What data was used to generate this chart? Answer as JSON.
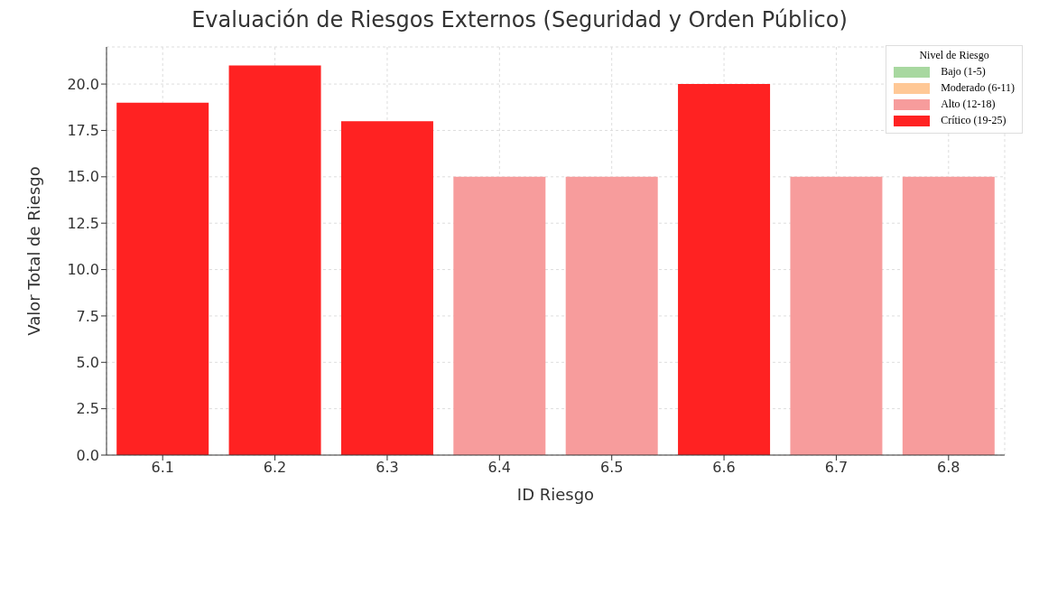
{
  "chart_data": {
    "type": "bar",
    "title": "Evaluación de Riesgos Externos (Seguridad y Orden Público)",
    "xlabel": "ID Riesgo",
    "ylabel": "Valor Total de Riesgo",
    "legend_title": "Nivel de Riesgo",
    "categories": [
      "6.1",
      "6.2",
      "6.3",
      "6.4",
      "6.5",
      "6.6",
      "6.7",
      "6.8"
    ],
    "series": [
      {
        "name": "Bajo (1-5)",
        "color": "#a8d8a0",
        "values": [
          null,
          null,
          null,
          null,
          null,
          null,
          null,
          null
        ]
      },
      {
        "name": "Moderado (6-11)",
        "color": "#ffc896",
        "values": [
          null,
          null,
          null,
          null,
          null,
          null,
          null,
          null
        ]
      },
      {
        "name": "Alto (12-18)",
        "color": "#f79c9c",
        "values": [
          null,
          null,
          null,
          15,
          15,
          null,
          15,
          15
        ]
      },
      {
        "name": "Crítico (19-25)",
        "color": "#ff2222",
        "values": [
          19,
          21,
          18,
          null,
          null,
          20,
          null,
          null
        ]
      }
    ],
    "stacked": true,
    "ylim": [
      0,
      22
    ],
    "yticks": [
      {
        "value": 0,
        "label": "0.0"
      },
      {
        "value": 2.5,
        "label": "2.5"
      },
      {
        "value": 5,
        "label": "5.0"
      },
      {
        "value": 7.5,
        "label": "7.5"
      },
      {
        "value": 10,
        "label": "10.0"
      },
      {
        "value": 12.5,
        "label": "12.5"
      },
      {
        "value": 15,
        "label": "15.0"
      },
      {
        "value": 17.5,
        "label": "17.5"
      },
      {
        "value": 20,
        "label": "20.0"
      }
    ],
    "grid": true,
    "legend": "top right"
  }
}
